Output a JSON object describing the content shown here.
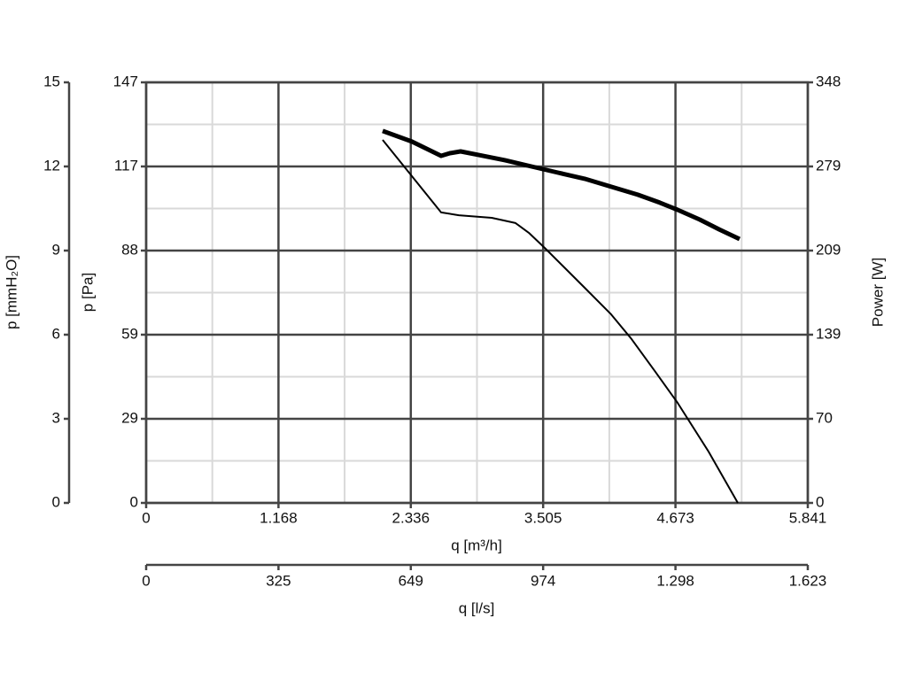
{
  "chart_data": {
    "type": "line",
    "xlabel": "q [m³/h]",
    "xlim": [
      0,
      5841
    ],
    "xticks": [
      0,
      {
        "value": 1168.2,
        "label": "1.168"
      },
      {
        "value": 2336.4,
        "label": "2.336"
      },
      {
        "value": 3504.6,
        "label": "3.505"
      },
      {
        "value": 4672.8,
        "label": "4.673"
      },
      {
        "value": 5841,
        "label": "5.841"
      }
    ],
    "x2label": "q [l/s]",
    "x2lim": [
      0,
      1622.5
    ],
    "x2ticks": [
      0,
      {
        "value": 324.5,
        "label": "325"
      },
      649,
      {
        "value": 973.5,
        "label": "974"
      },
      {
        "value": 1298,
        "label": "1.298"
      },
      {
        "value": 1622.5,
        "label": "1.623"
      }
    ],
    "ylabel": "p [Pa]",
    "ylim": [
      0,
      146.8
    ],
    "yticks": [
      0,
      {
        "value": 29.36,
        "label": "29"
      },
      {
        "value": 58.72,
        "label": "59"
      },
      {
        "value": 88.08,
        "label": "88"
      },
      {
        "value": 117.44,
        "label": "117"
      },
      {
        "value": 146.8,
        "label": "147"
      }
    ],
    "y3label": "p [mmH₂O]",
    "y3lim": [
      0,
      15
    ],
    "y3ticks": [
      0,
      3,
      6,
      9,
      12,
      15
    ],
    "y2label": "Power [W]",
    "y2lim": [
      0,
      348.4
    ],
    "y2ticks": [
      0,
      {
        "value": 69.68,
        "label": "70"
      },
      {
        "value": 139.36,
        "label": "139"
      },
      {
        "value": 209.04,
        "label": "209"
      },
      {
        "value": 278.72,
        "label": "279"
      },
      {
        "value": 348.4,
        "label": "348"
      }
    ],
    "grid": true,
    "minor_grid": true,
    "series": [
      {
        "color": "#000000",
        "line_width": 2,
        "x": [
          2088,
          2604,
          2760,
          3050,
          3261,
          3378,
          3519,
          3871,
          4105,
          4285,
          4496,
          4692,
          4965,
          5223
        ],
        "values": [
          126.7,
          101.4,
          100.4,
          99.5,
          97.7,
          94.3,
          89.0,
          75.1,
          65.8,
          57.2,
          45.7,
          34.9,
          17.9,
          0
        ]
      },
      {
        "color": "#000000",
        "line_width": 5,
        "axis": "y2",
        "x": [
          2088,
          2346,
          2604,
          2682,
          2776,
          2932,
          3167,
          3401,
          3636,
          3871,
          4105,
          4340,
          4535,
          4692,
          4887,
          5059,
          5239
        ],
        "values": [
          308.1,
          299.3,
          287.5,
          289.7,
          291.2,
          288.3,
          283.9,
          278.7,
          273.6,
          268.5,
          261.9,
          255.3,
          248.7,
          242.8,
          234.7,
          226.6,
          218.6
        ]
      }
    ]
  }
}
